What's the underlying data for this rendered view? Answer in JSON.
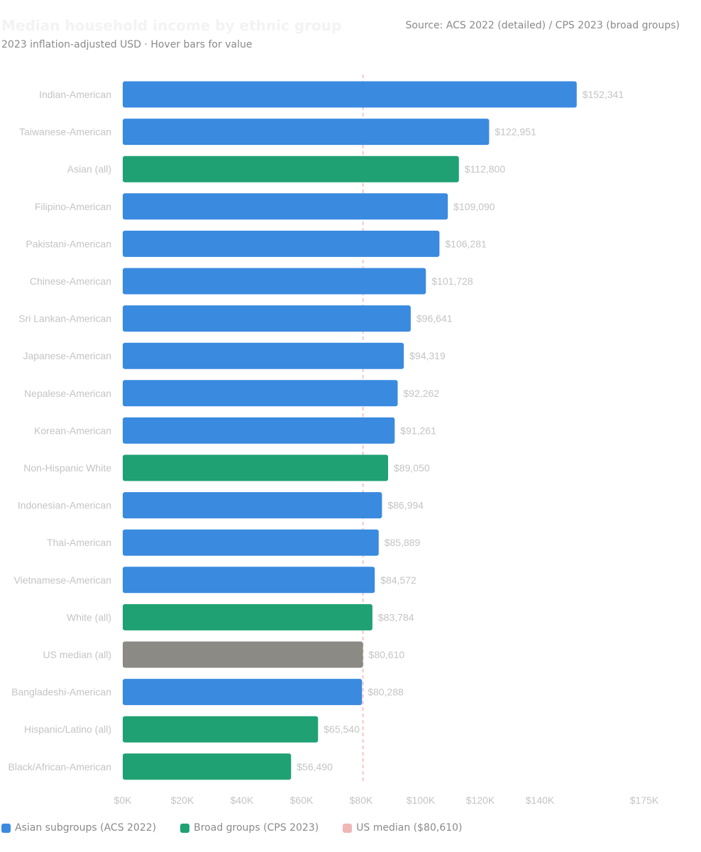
{
  "header": {
    "title": "Median household income by ethnic group",
    "subtitle": "2023 inflation-adjusted USD · Hover bars for value",
    "source": "Source: ACS 2022 (detailed) / CPS 2023 (broad groups)"
  },
  "legend": {
    "items": [
      {
        "label": "Asian subgroups (ACS 2022)",
        "color": "#3a8ae0"
      },
      {
        "label": "Broad groups (CPS 2023)",
        "color": "#1fa174"
      },
      {
        "label": "US median ($80,610)",
        "color": "#efb7b7"
      }
    ]
  },
  "chart_data": {
    "type": "bar",
    "orientation": "horizontal",
    "title": "Median household income by ethnic group",
    "subtitle": "2023 inflation-adjusted USD · Hover bars for value",
    "xlim": [
      0,
      175000
    ],
    "x_ticks": [
      0,
      20000,
      40000,
      60000,
      80000,
      100000,
      120000,
      140000,
      175000
    ],
    "x_tick_labels": [
      "$0K",
      "$20K",
      "$40K",
      "$60K",
      "$80K",
      "$100K",
      "$120K",
      "$140K",
      "$175K"
    ],
    "reference_line": {
      "value": 80610,
      "label": "US median ($80,610)",
      "color": "#efb7b7"
    },
    "colors": {
      "asian": "#3a8ae0",
      "broad": "#1fa174",
      "us": "#8b8a85"
    },
    "grid": false,
    "legend_position": "bottom-left",
    "bars": [
      {
        "label": "Indian-American",
        "value": 152341,
        "value_label": "$152,341",
        "group": "asian"
      },
      {
        "label": "Taiwanese-American",
        "value": 122951,
        "value_label": "$122,951",
        "group": "asian"
      },
      {
        "label": "Asian (all)",
        "value": 112800,
        "value_label": "$112,800",
        "group": "broad"
      },
      {
        "label": "Filipino-American",
        "value": 109090,
        "value_label": "$109,090",
        "group": "asian"
      },
      {
        "label": "Pakistani-American",
        "value": 106281,
        "value_label": "$106,281",
        "group": "asian"
      },
      {
        "label": "Chinese-American",
        "value": 101728,
        "value_label": "$101,728",
        "group": "asian"
      },
      {
        "label": "Sri Lankan-American",
        "value": 96641,
        "value_label": "$96,641",
        "group": "asian"
      },
      {
        "label": "Japanese-American",
        "value": 94319,
        "value_label": "$94,319",
        "group": "asian"
      },
      {
        "label": "Nepalese-American",
        "value": 92262,
        "value_label": "$92,262",
        "group": "asian"
      },
      {
        "label": "Korean-American",
        "value": 91261,
        "value_label": "$91,261",
        "group": "asian"
      },
      {
        "label": "Non-Hispanic White",
        "value": 89050,
        "value_label": "$89,050",
        "group": "broad"
      },
      {
        "label": "Indonesian-American",
        "value": 86994,
        "value_label": "$86,994",
        "group": "asian"
      },
      {
        "label": "Thai-American",
        "value": 85889,
        "value_label": "$85,889",
        "group": "asian"
      },
      {
        "label": "Vietnamese-American",
        "value": 84572,
        "value_label": "$84,572",
        "group": "asian"
      },
      {
        "label": "White (all)",
        "value": 83784,
        "value_label": "$83,784",
        "group": "broad"
      },
      {
        "label": "US median (all)",
        "value": 80610,
        "value_label": "$80,610",
        "group": "us"
      },
      {
        "label": "Bangladeshi-American",
        "value": 80288,
        "value_label": "$80,288",
        "group": "asian"
      },
      {
        "label": "Hispanic/Latino (all)",
        "value": 65540,
        "value_label": "$65,540",
        "group": "broad"
      },
      {
        "label": "Black/African-American",
        "value": 56490,
        "value_label": "$56,490",
        "group": "broad"
      }
    ]
  }
}
